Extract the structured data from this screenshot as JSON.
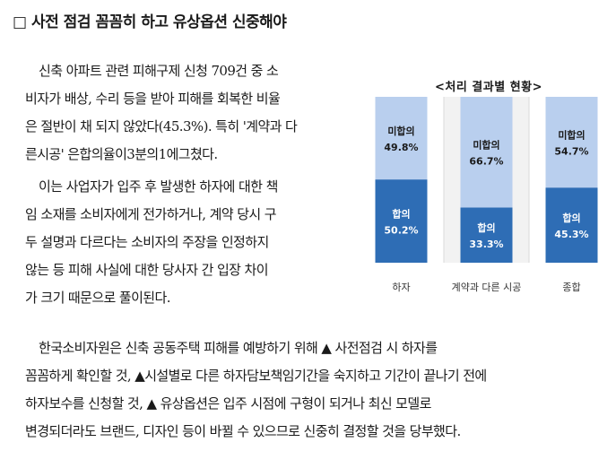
{
  "section": {
    "heading": "□ 사전 점검 꼼꼼히 하고 유상옵션 신중해야"
  },
  "paragraphs": [
    {
      "lines": [
        "신축 아파트 관련 피해구제 신청 709건 중 소",
        "비자가 배상, 수리 등을 받아 피해를 회복한 비율",
        "은 절반이 채 되지 않았다(45.3%). 특히 '계약과 다",
        "른시공' 은합의율이3분의1에그쳤다."
      ]
    },
    {
      "lines": [
        "이는 사업자가 입주 후 발생한 하자에 대한 책",
        "임 소재를 소비자에게 전가하거나, 계약 당시 구",
        "두 설명과 다르다는 소비자의 주장을 인정하지",
        "않는 등 피해 사실에 대한 당사자 간 입장 차이",
        "가 크기 때문으로 풀이된다."
      ]
    },
    {
      "lines": [
        "한국소비자원은 신축 공동주택 피해를 예방하기 위해 ▲ 사전점검 시 하자를",
        "꼼꼼하게 확인할 것, ▲시설별로 다른 하자담보책임기간을 숙지하고 기간이 끝나기 전에",
        "하자보수를 신청할 것, ▲ 유상옵션은 입주 시점에 구형이 되거나 최신 모델로",
        "변경되더라도 브랜드, 디자인 등이 바뀔 수 있으므로 신중히 결정할 것을 당부했다."
      ]
    }
  ],
  "chart_data": {
    "type": "bar",
    "stacked": true,
    "title": "<처리 결과별 현황>",
    "categories": [
      "하자",
      "계약과 다른 시공",
      "종합"
    ],
    "series": [
      {
        "name": "합의",
        "label": "합의",
        "values": [
          50.2,
          33.3,
          45.3
        ],
        "value_labels": [
          "50.2%",
          "33.3%",
          "45.3%"
        ],
        "color": "#2e6db5"
      },
      {
        "name": "미합의",
        "label": "미합의",
        "values": [
          49.8,
          66.7,
          54.7
        ],
        "value_labels": [
          "49.8%",
          "66.7%",
          "54.7%"
        ],
        "color": "#b9cfee"
      }
    ],
    "ylim": [
      0,
      100
    ],
    "legend": "none",
    "grid": false
  }
}
